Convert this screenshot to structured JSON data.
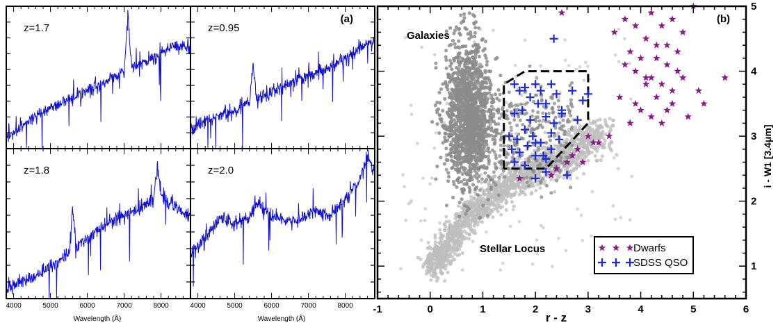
{
  "chart_data": [
    {
      "type": "line",
      "panel_label": "(a)",
      "x_tick_labels": [
        "4000",
        "5000",
        "6000",
        "7000",
        "8000"
      ],
      "x_ticks": [
        4000,
        5000,
        6000,
        7000,
        8000
      ],
      "xlabel": "Wavelength (Å)",
      "xlim": [
        3800,
        8800
      ],
      "series_color": "#1010d0",
      "spectra": [
        {
          "label": "z=1.7",
          "x": [
            3800,
            4200,
            4600,
            5000,
            5400,
            5800,
            6200,
            6600,
            7000,
            7100,
            7200,
            7600,
            8000,
            8400,
            8800
          ],
          "y": [
            0.05,
            0.14,
            0.22,
            0.28,
            0.33,
            0.38,
            0.43,
            0.49,
            0.54,
            0.98,
            0.58,
            0.62,
            0.68,
            0.75,
            0.72
          ]
        },
        {
          "label": "z=0.95",
          "x": [
            3800,
            4200,
            4600,
            5000,
            5400,
            5500,
            5600,
            6000,
            6400,
            6800,
            7200,
            7600,
            8000,
            8400,
            8800
          ],
          "y": [
            0.12,
            0.18,
            0.22,
            0.25,
            0.32,
            0.6,
            0.34,
            0.4,
            0.45,
            0.5,
            0.54,
            0.58,
            0.65,
            0.72,
            0.78
          ]
        },
        {
          "label": "z=1.8",
          "x": [
            3800,
            4200,
            4600,
            5000,
            5500,
            5600,
            5700,
            6200,
            6800,
            7400,
            7800,
            7900,
            8000,
            8400,
            8800
          ],
          "y": [
            0.05,
            0.1,
            0.14,
            0.2,
            0.3,
            0.62,
            0.34,
            0.44,
            0.54,
            0.6,
            0.68,
            0.92,
            0.7,
            0.62,
            0.55
          ]
        },
        {
          "label": "z=2.0",
          "x": [
            3800,
            4200,
            4600,
            5000,
            5400,
            5600,
            6000,
            6400,
            6800,
            7200,
            7600,
            8000,
            8400,
            8600,
            8800
          ],
          "y": [
            0.3,
            0.4,
            0.55,
            0.5,
            0.55,
            0.65,
            0.55,
            0.52,
            0.53,
            0.6,
            0.55,
            0.68,
            0.8,
            1.0,
            0.85
          ]
        }
      ]
    },
    {
      "type": "scatter",
      "panel_label": "(b)",
      "xlabel": "r - z",
      "ylabel": "i - W1 [3.4μm]",
      "xlim": [
        -1,
        6
      ],
      "ylim": [
        0.5,
        5
      ],
      "x_ticks": [
        -1,
        0,
        1,
        2,
        3,
        4,
        5,
        6
      ],
      "x_tick_labels": [
        "-1",
        "0",
        "1",
        "2",
        "3",
        "4",
        "5",
        "6"
      ],
      "y_ticks": [
        1,
        2,
        3,
        4,
        5
      ],
      "y_tick_labels": [
        "1",
        "2",
        "3",
        "4",
        "5"
      ],
      "annotations": [
        "Galaxies",
        "Stellar Locus"
      ],
      "colors": {
        "galaxies": "#8c8c8c",
        "stellar_locus": "#bdbdbd",
        "dwarfs": "#8a1a8a",
        "qso": "#1a2ad8"
      },
      "selection_box": {
        "x": [
          1.4,
          1.4,
          1.8,
          3.0,
          3.0,
          2.2,
          1.4
        ],
        "y": [
          2.5,
          3.8,
          4.0,
          4.0,
          3.2,
          2.5,
          2.5
        ]
      },
      "legend": {
        "position": "lower-right",
        "entries": [
          "Dwarfs",
          "SDSS QSO"
        ]
      },
      "series": [
        {
          "name": "Dwarfs",
          "marker": "star",
          "x": [
            2.5,
            3.5,
            3.7,
            3.9,
            4.1,
            4.2,
            4.4,
            4.5,
            4.6,
            4.7,
            4.8,
            5.0,
            3.8,
            4.0,
            4.3,
            4.5,
            4.7,
            4.2,
            4.4,
            4.6,
            4.8,
            3.6,
            3.9,
            4.1,
            4.3,
            4.5,
            4.0,
            4.2,
            4.4,
            3.8,
            4.6,
            5.1,
            5.6,
            3.0,
            3.2,
            3.4,
            2.8,
            2.6,
            2.4,
            2.7,
            3.1,
            2.9,
            4.9,
            5.2,
            1.7,
            2.3,
            3.7,
            4.3,
            4.1,
            3.9
          ],
          "y": [
            4.9,
            4.6,
            4.8,
            4.7,
            4.5,
            4.9,
            4.7,
            4.4,
            4.8,
            4.3,
            4.6,
            5.0,
            4.3,
            4.2,
            4.4,
            4.1,
            4.0,
            3.9,
            3.8,
            3.7,
            3.9,
            3.6,
            3.5,
            3.8,
            3.6,
            3.4,
            3.4,
            3.3,
            3.2,
            3.2,
            3.5,
            3.7,
            3.9,
            3.0,
            2.9,
            3.0,
            2.8,
            2.6,
            2.5,
            2.7,
            2.9,
            2.6,
            3.3,
            3.5,
            2.35,
            2.4,
            4.1,
            4.2,
            3.9,
            4.0
          ]
        },
        {
          "name": "SDSS QSO",
          "marker": "plus",
          "x": [
            2.35,
            1.6,
            1.7,
            1.8,
            1.9,
            2.0,
            2.1,
            2.2,
            2.3,
            2.4,
            2.5,
            1.6,
            1.75,
            1.9,
            2.05,
            2.2,
            2.35,
            2.5,
            2.7,
            2.9,
            3.0,
            1.5,
            1.65,
            1.8,
            1.95,
            2.1,
            2.3,
            1.55,
            1.7,
            1.85,
            2.0,
            2.15,
            2.3,
            2.45,
            1.6,
            1.8,
            2.0,
            2.2,
            2.8,
            2.6,
            2.0,
            2.2
          ],
          "y": [
            4.5,
            3.8,
            3.7,
            3.75,
            3.6,
            3.8,
            3.7,
            3.5,
            3.8,
            3.65,
            3.4,
            3.35,
            3.4,
            3.25,
            3.5,
            3.3,
            3.2,
            3.35,
            3.7,
            3.55,
            3.65,
            3.0,
            2.95,
            3.1,
            3.0,
            2.9,
            3.05,
            2.8,
            2.75,
            2.85,
            2.9,
            2.7,
            2.8,
            2.95,
            2.6,
            2.55,
            2.7,
            2.65,
            3.25,
            2.4,
            2.35,
            2.45
          ]
        }
      ]
    }
  ]
}
